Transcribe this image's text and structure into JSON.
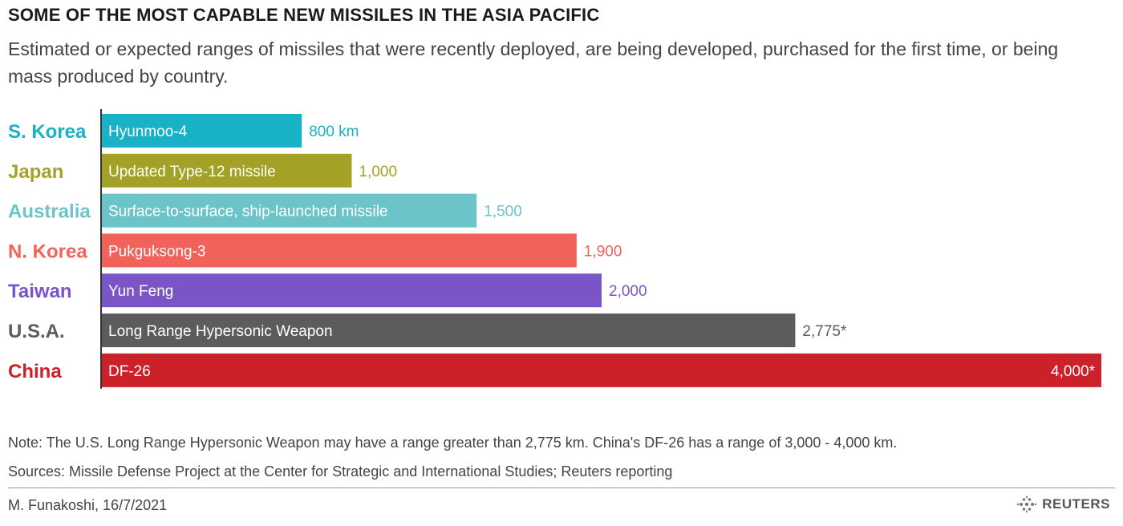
{
  "title": "SOME OF THE MOST CAPABLE NEW MISSILES IN THE ASIA PACIFIC",
  "subtitle": "Estimated or expected ranges of missiles that were recently deployed, are being developed, purchased for the first time, or being mass produced by country.",
  "chart_data": {
    "type": "bar",
    "orientation": "horizontal",
    "unit": "km",
    "xlim": [
      0,
      4000
    ],
    "grid": false,
    "legend": "none",
    "categories": [
      "S. Korea",
      "Japan",
      "Australia",
      "N. Korea",
      "Taiwan",
      "U.S.A.",
      "China"
    ],
    "missiles": [
      "Hyunmoo-4",
      "Updated Type-12 missile",
      "Surface-to-surface, ship-launched missile",
      "Pukguksong-3",
      "Yun Feng",
      "Long Range Hypersonic Weapon",
      "DF-26"
    ],
    "values": [
      800,
      1000,
      1500,
      1900,
      2000,
      2775,
      4000
    ],
    "value_labels": [
      "800 km",
      "1,000",
      "1,500",
      "1,900",
      "2,000",
      "2,775*",
      "4,000*"
    ],
    "colors": [
      "#19b1c5",
      "#a4a127",
      "#6cc4c8",
      "#f0625a",
      "#7a55c6",
      "#5c5c5c",
      "#cc2129"
    ]
  },
  "note": "Note: The U.S. Long Range Hypersonic Weapon may have a range greater than 2,775 km. China's DF-26 has a range of 3,000 - 4,000 km.",
  "sources": "Sources: Missile Defense Project at the Center for Strategic and International Studies; Reuters reporting",
  "credit": "M. Funakoshi, 16/7/2021",
  "logo": {
    "icon": "reuters-logo-icon",
    "text": "REUTERS"
  }
}
